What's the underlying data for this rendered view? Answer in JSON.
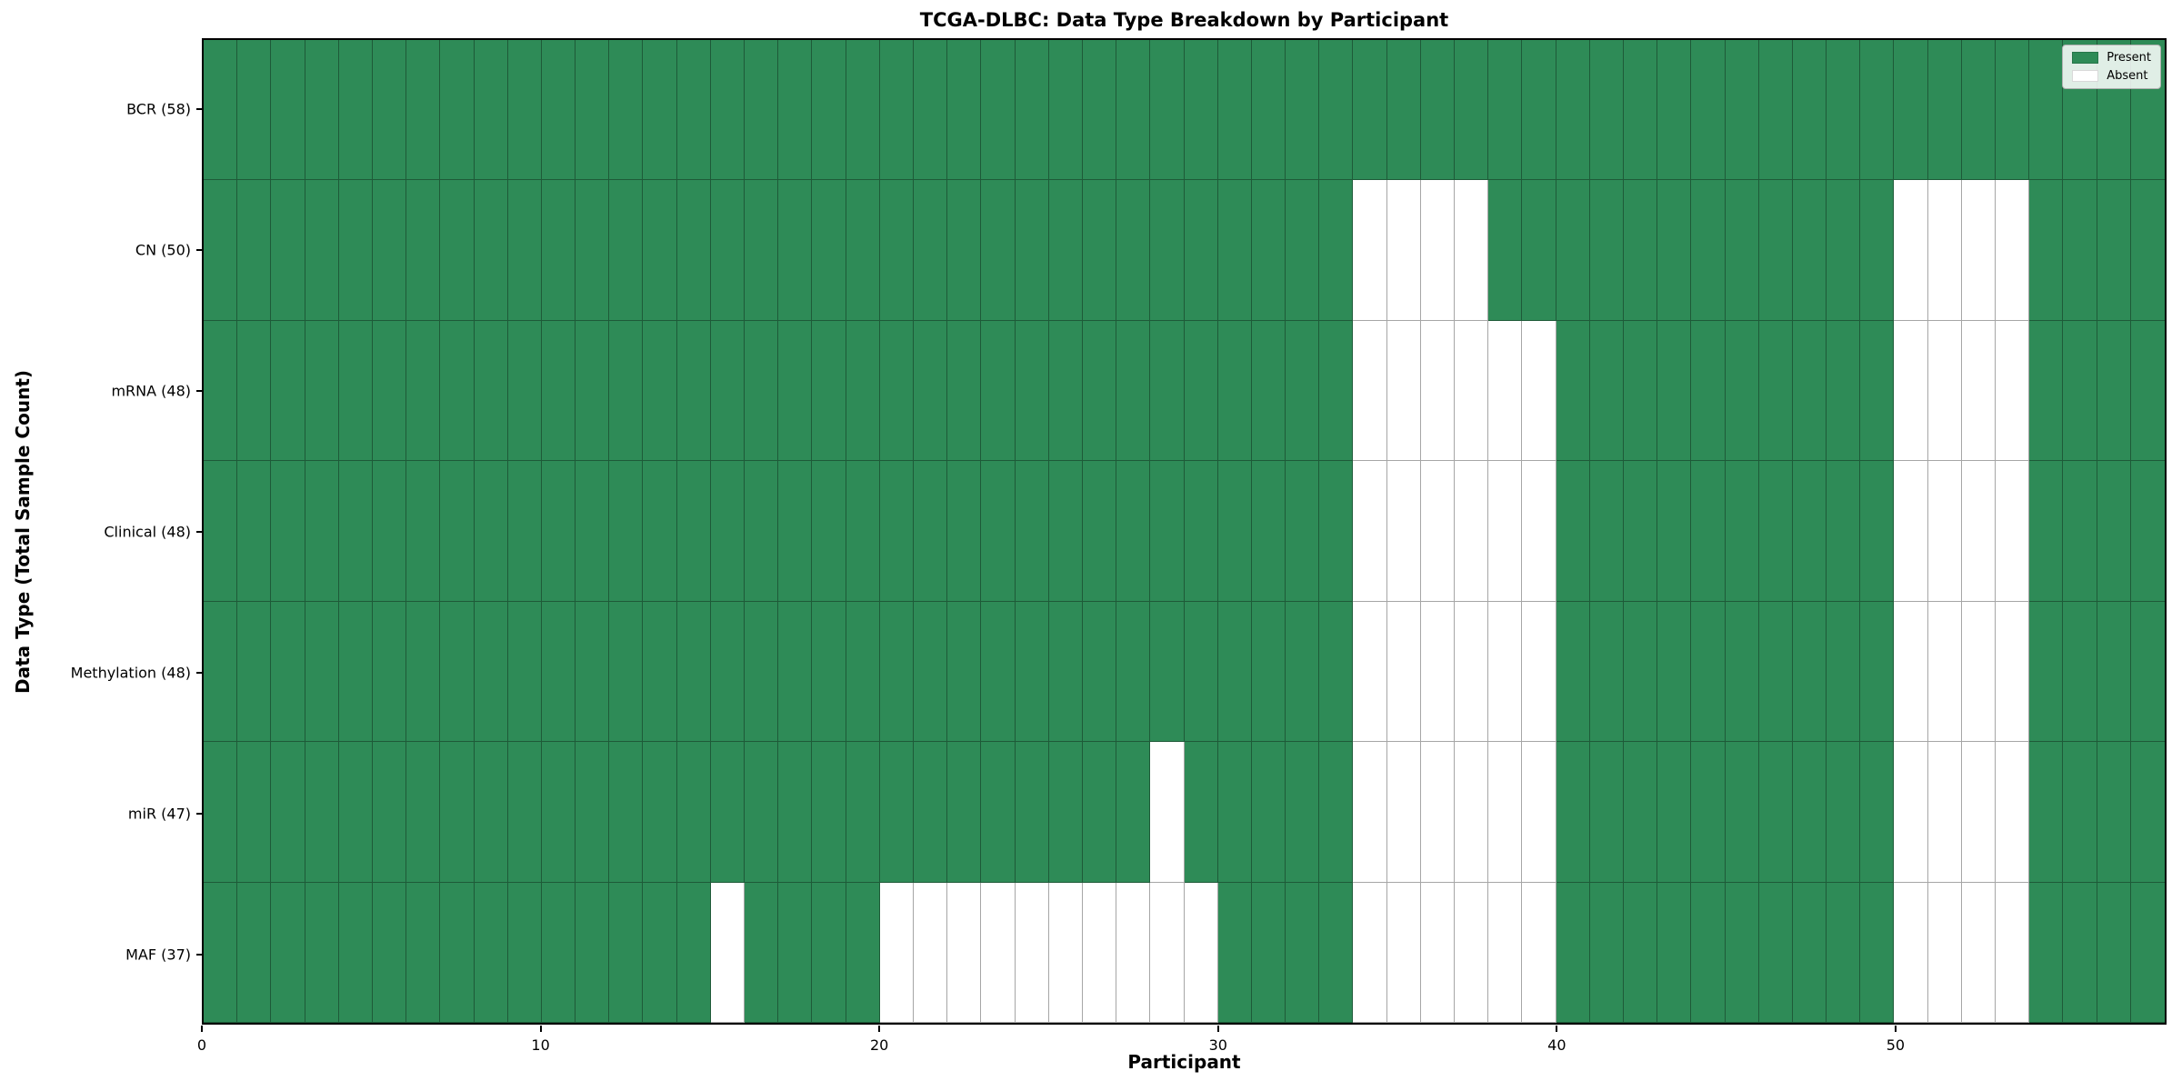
{
  "chart_data": {
    "type": "heatmap",
    "title": "TCGA-DLBC: Data Type Breakdown by Participant",
    "xlabel": "Participant",
    "ylabel": "Data Type (Total Sample Count)",
    "n_participants": 58,
    "x_range": [
      0,
      58
    ],
    "x_ticks": [
      0,
      10,
      20,
      30,
      40,
      50
    ],
    "grid": true,
    "legend_position": "upper right",
    "value_legend": [
      {
        "label": "Present",
        "color": "#2e8b57"
      },
      {
        "label": "Absent",
        "color": "#ffffff"
      }
    ],
    "colors": {
      "present": "#2e8b57",
      "absent": "#ffffff"
    },
    "rows": [
      {
        "data_type": "BCR",
        "label": "BCR (58)",
        "total_present": 58,
        "absent_participants": []
      },
      {
        "data_type": "CN",
        "label": "CN (50)",
        "total_present": 50,
        "absent_participants": [
          34,
          35,
          36,
          37,
          50,
          51,
          52,
          53
        ]
      },
      {
        "data_type": "mRNA",
        "label": "mRNA (48)",
        "total_present": 48,
        "absent_participants": [
          34,
          35,
          36,
          37,
          38,
          39,
          50,
          51,
          52,
          53
        ]
      },
      {
        "data_type": "Clinical",
        "label": "Clinical (48)",
        "total_present": 48,
        "absent_participants": [
          34,
          35,
          36,
          37,
          38,
          39,
          50,
          51,
          52,
          53
        ]
      },
      {
        "data_type": "Methylation",
        "label": "Methylation (48)",
        "total_present": 48,
        "absent_participants": [
          34,
          35,
          36,
          37,
          38,
          39,
          50,
          51,
          52,
          53
        ]
      },
      {
        "data_type": "miR",
        "label": "miR (47)",
        "total_present": 47,
        "absent_participants": [
          28,
          34,
          35,
          36,
          37,
          38,
          39,
          50,
          51,
          52,
          53
        ]
      },
      {
        "data_type": "MAF",
        "label": "MAF (37)",
        "total_present": 37,
        "absent_participants": [
          15,
          20,
          21,
          22,
          23,
          24,
          25,
          26,
          27,
          28,
          29,
          34,
          35,
          36,
          37,
          38,
          39,
          50,
          51,
          52,
          53
        ]
      }
    ]
  }
}
